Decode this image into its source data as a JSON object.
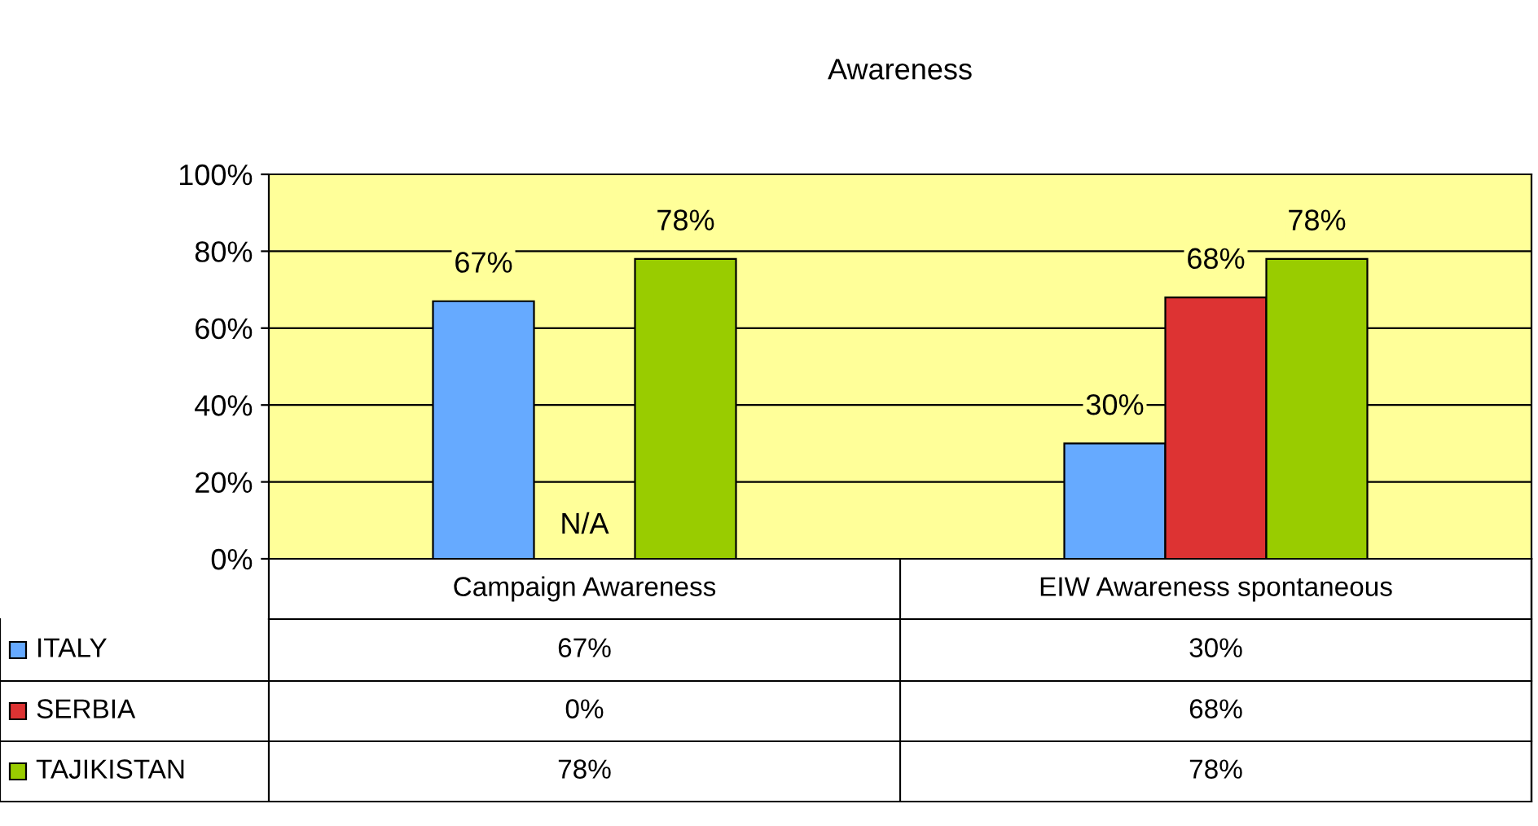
{
  "chart_data": {
    "type": "bar",
    "title": "Awareness",
    "categories": [
      "Campaign Awareness",
      "EIW Awareness spontaneous"
    ],
    "series": [
      {
        "name": "ITALY",
        "color": "#66aaff",
        "values": [
          67,
          30
        ],
        "value_labels": [
          "67%",
          "30%"
        ]
      },
      {
        "name": "SERBIA",
        "color": "#dd3333",
        "values": [
          0,
          68
        ],
        "value_labels": [
          "0%",
          "68%"
        ]
      },
      {
        "name": "TAJIKISTAN",
        "color": "#99cc00",
        "values": [
          78,
          78
        ],
        "value_labels": [
          "78%",
          "78%"
        ]
      }
    ],
    "ylim": [
      0,
      100
    ],
    "yticks": [
      {
        "value": 0,
        "label": "0%"
      },
      {
        "value": 20,
        "label": "20%"
      },
      {
        "value": 40,
        "label": "40%"
      },
      {
        "value": 60,
        "label": "60%"
      },
      {
        "value": 80,
        "label": "80%"
      },
      {
        "value": 100,
        "label": "100%"
      }
    ],
    "annotations": [
      {
        "text": "N/A",
        "x": "Campaign Awareness",
        "y": 0
      }
    ],
    "grid": "y",
    "legend": "bottom",
    "data_labels": true
  }
}
